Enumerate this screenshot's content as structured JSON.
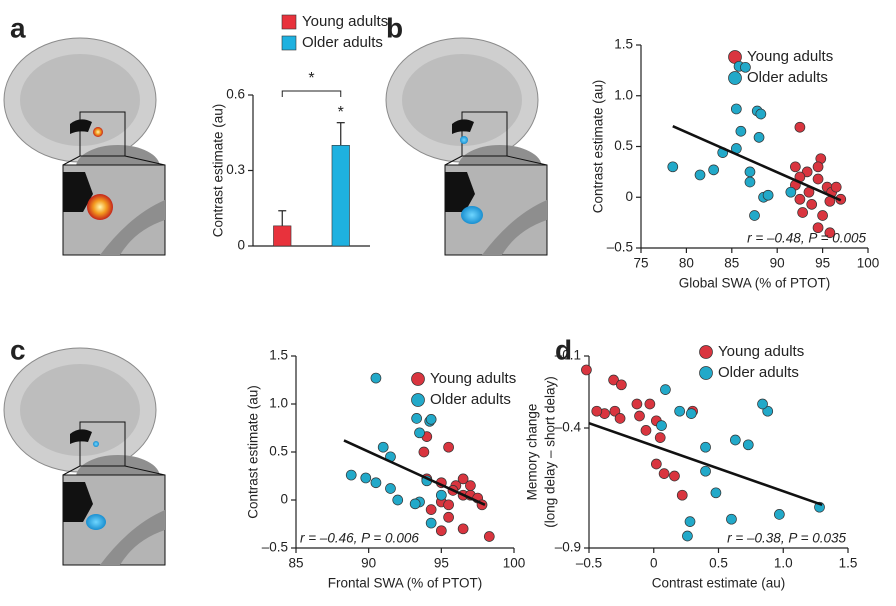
{
  "chart_data": [
    {
      "type": "bar",
      "panel": "a",
      "ylabel": "Contrast estimate (au)",
      "ylim": [
        0,
        0.6
      ],
      "yticks": [
        0,
        0.3,
        0.6
      ],
      "series": [
        {
          "name": "Young adults",
          "color": "#e8323c",
          "values": [
            0.08
          ],
          "errors": [
            0.06
          ]
        },
        {
          "name": "Older adults",
          "color": "#1eb1e0",
          "values": [
            0.4
          ],
          "errors": [
            0.09
          ]
        }
      ],
      "annotations": [
        "*",
        "*"
      ]
    },
    {
      "type": "scatter",
      "panel": "b",
      "xlabel": "Global SWA (% of PTOT)",
      "ylabel": "Contrast estimate (au)",
      "xlim": [
        75,
        100
      ],
      "xticks": [
        75,
        80,
        85,
        90,
        95,
        100
      ],
      "ylim": [
        -0.5,
        1.5
      ],
      "yticks": [
        {
          "value": -0.5,
          "label": "–0.5"
        },
        0,
        0.5,
        {
          "value": 1,
          "label": "1.0"
        },
        1.5
      ],
      "series": [
        {
          "name": "Young adults",
          "color": "#d9353f",
          "x": [
            92.5,
            94.8,
            94.5,
            93.3,
            92.5,
            92,
            93.5,
            94.5,
            95.5,
            96,
            96.5,
            97,
            95.8,
            93.8,
            92.5,
            92.8,
            95,
            94.5,
            95.8,
            92
          ],
          "values": [
            0.69,
            0.38,
            0.3,
            0.25,
            0.2,
            0.12,
            0.05,
            0.18,
            0.1,
            0.05,
            0.1,
            -0.02,
            -0.04,
            -0.07,
            -0.02,
            -0.15,
            -0.18,
            -0.3,
            -0.35,
            0.3
          ]
        },
        {
          "name": "Older adults",
          "color": "#22a9c9",
          "x": [
            85.8,
            86.5,
            85.5,
            87.8,
            88.2,
            86,
            88,
            84,
            85.5,
            78.5,
            81.5,
            83,
            87,
            87,
            88.5,
            89,
            87.5,
            91.5
          ],
          "values": [
            1.29,
            1.28,
            0.87,
            0.85,
            0.82,
            0.65,
            0.59,
            0.44,
            0.48,
            0.3,
            0.22,
            0.27,
            0.25,
            0.15,
            0.0,
            0.02,
            -0.18,
            0.05
          ]
        }
      ],
      "trendline": {
        "x": [
          78.5,
          97
        ],
        "y": [
          0.7,
          -0.03
        ]
      },
      "annotation": "r = –0.48, P = 0.005"
    },
    {
      "type": "scatter",
      "panel": "c",
      "xlabel": "Frontal SWA (% of PTOT)",
      "ylabel": "Contrast estimate (au)",
      "xlim": [
        85,
        100
      ],
      "xticks": [
        85,
        90,
        95,
        100
      ],
      "ylim": [
        -0.5,
        1.5
      ],
      "yticks": [
        {
          "value": -0.5,
          "label": "–0.5"
        },
        0,
        0.5,
        {
          "value": 1,
          "label": "1.0"
        },
        1.5
      ],
      "series": [
        {
          "name": "Young adults",
          "color": "#d9353f",
          "x": [
            94,
            95.5,
            93.8,
            96.5,
            94,
            95,
            96,
            95.8,
            96.5,
            97,
            97.5,
            97.8,
            95,
            95.5,
            94.3,
            95.5,
            95,
            96.5,
            98.3,
            97
          ],
          "values": [
            0.66,
            0.55,
            0.5,
            0.22,
            0.22,
            0.18,
            0.15,
            0.1,
            0.05,
            0.05,
            0.02,
            -0.05,
            -0.02,
            -0.05,
            -0.1,
            -0.18,
            -0.32,
            -0.3,
            -0.38,
            0.15
          ]
        },
        {
          "name": "Older adults",
          "color": "#22a9c9",
          "x": [
            90.5,
            93.3,
            94.2,
            94.3,
            93.5,
            91,
            91.5,
            88.8,
            89.8,
            90.5,
            91.5,
            94,
            93.5,
            93.2,
            92,
            94.3,
            95
          ],
          "values": [
            1.27,
            0.85,
            0.82,
            0.84,
            0.7,
            0.55,
            0.45,
            0.26,
            0.23,
            0.18,
            0.12,
            0.2,
            -0.02,
            -0.04,
            0.0,
            -0.24,
            0.05
          ]
        }
      ],
      "trendline": {
        "x": [
          88.3,
          98
        ],
        "y": [
          0.62,
          -0.05
        ]
      },
      "annotation": "r = –0.46, P = 0.006"
    },
    {
      "type": "scatter",
      "panel": "d",
      "xlabel": "Contrast estimate (au)",
      "ylabel": [
        "Memory change",
        "(long delay – short delay)"
      ],
      "xlim": [
        -0.5,
        1.5
      ],
      "xticks": [
        {
          "value": -0.5,
          "label": "–0.5"
        },
        0,
        0.5,
        {
          "value": 1,
          "label": "1.0"
        },
        1.5
      ],
      "ylim": [
        -0.9,
        -0.1
      ],
      "yticks": [
        {
          "value": -0.9,
          "label": "–0.9"
        },
        {
          "value": -0.4,
          "label": "–0.4"
        },
        {
          "value": -0.1,
          "label": "–0.1"
        }
      ],
      "series": [
        {
          "name": "Young adults",
          "color": "#d9353f",
          "x": [
            -0.52,
            -0.31,
            -0.25,
            -0.03,
            -0.13,
            -0.3,
            -0.38,
            -0.44,
            -0.26,
            -0.11,
            0.02,
            -0.06,
            0.3,
            0.05,
            0.08,
            0.16,
            0.22,
            0.02
          ],
          "values": [
            -0.158,
            -0.2,
            -0.22,
            -0.3,
            -0.3,
            -0.33,
            -0.34,
            -0.33,
            -0.36,
            -0.35,
            -0.37,
            -0.41,
            -0.33,
            -0.44,
            -0.59,
            -0.6,
            -0.68,
            -0.55
          ]
        },
        {
          "name": "Older adults",
          "color": "#22a9c9",
          "x": [
            0.06,
            0.09,
            0.2,
            0.29,
            0.4,
            0.63,
            0.4,
            0.48,
            0.28,
            0.26,
            0.6,
            0.88,
            0.84,
            0.73,
            0.97,
            1.28
          ],
          "values": [
            -0.39,
            -0.24,
            -0.33,
            -0.34,
            -0.48,
            -0.45,
            -0.58,
            -0.67,
            -0.79,
            -0.85,
            -0.78,
            -0.33,
            -0.3,
            -0.47,
            -0.76,
            -0.73
          ]
        }
      ],
      "trendline": {
        "x": [
          -0.5,
          1.3
        ],
        "y": [
          -0.38,
          -0.72
        ]
      },
      "annotation": "r = –0.38, P = 0.035"
    }
  ]
}
